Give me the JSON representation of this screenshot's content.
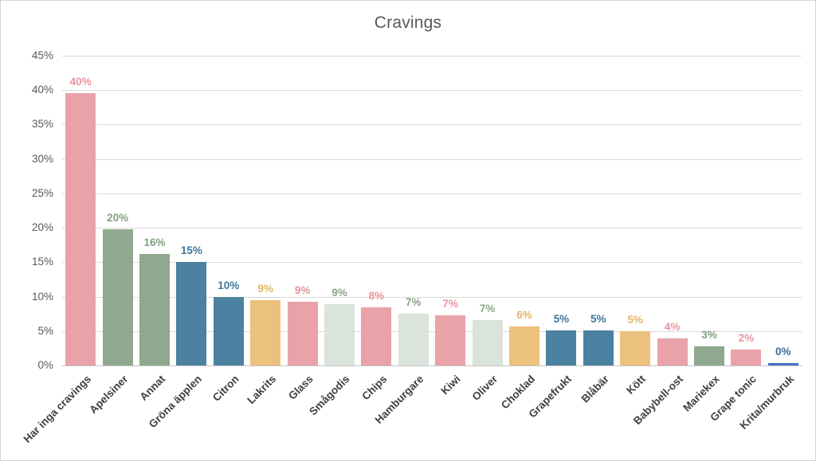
{
  "chart_data": {
    "type": "bar",
    "title": "Cravings",
    "xlabel": "",
    "ylabel": "",
    "ylim": [
      0,
      45
    ],
    "y_tick_step": 5,
    "y_tick_labels": [
      "0%",
      "5%",
      "10%",
      "15%",
      "20%",
      "25%",
      "30%",
      "35%",
      "40%",
      "45%"
    ],
    "grid": true,
    "legend": false,
    "axis_colors": {
      "title": "#595959",
      "y_tick_text": "#595959",
      "x_tick_text": "#404040",
      "gridline": "#dadada",
      "axis_line": "#c4c4c4",
      "frame_border": "#d2d2d2"
    },
    "palette": {
      "pink": {
        "bar": "#e9a3a8",
        "label": "#e7959c"
      },
      "green": {
        "bar": "#90a88d",
        "label": "#82a07f"
      },
      "pale_green": {
        "bar": "#dae3dc",
        "label": "#8aa687"
      },
      "blue": {
        "bar": "#4c81a1",
        "label": "#3f769a"
      },
      "gold": {
        "bar": "#ecc17e",
        "label": "#e5b567"
      },
      "bright_blue": {
        "bar": "#4472c4",
        "label": "#3e6e99"
      }
    },
    "categories": [
      "Har inga cravings",
      "Apelsiner",
      "Annat",
      "Gröna äpplen",
      "Citron",
      "Lakrits",
      "Glass",
      "Smågodis",
      "Chips",
      "Hamburgare",
      "Kiwi",
      "Oliver",
      "Choklad",
      "Grapefrukt",
      "Blåbär",
      "Kött",
      "Babybell-ost",
      "Mariekex",
      "Grape tonic",
      "Krita/murbruk"
    ],
    "bars": [
      {
        "category": "Har inga cravings",
        "value": 39.6,
        "value_label": "40%",
        "color": "pink"
      },
      {
        "category": "Apelsiner",
        "value": 19.8,
        "value_label": "20%",
        "color": "green"
      },
      {
        "category": "Annat",
        "value": 16.2,
        "value_label": "16%",
        "color": "green"
      },
      {
        "category": "Gröna äpplen",
        "value": 15.0,
        "value_label": "15%",
        "color": "blue"
      },
      {
        "category": "Citron",
        "value": 9.9,
        "value_label": "10%",
        "color": "blue"
      },
      {
        "category": "Lakrits",
        "value": 9.5,
        "value_label": "9%",
        "color": "gold"
      },
      {
        "category": "Glass",
        "value": 9.3,
        "value_label": "9%",
        "color": "pink"
      },
      {
        "category": "Smågodis",
        "value": 8.9,
        "value_label": "9%",
        "color": "pale_green"
      },
      {
        "category": "Chips",
        "value": 8.5,
        "value_label": "8%",
        "color": "pink"
      },
      {
        "category": "Hamburgare",
        "value": 7.5,
        "value_label": "7%",
        "color": "pale_green"
      },
      {
        "category": "Kiwi",
        "value": 7.3,
        "value_label": "7%",
        "color": "pink"
      },
      {
        "category": "Oliver",
        "value": 6.6,
        "value_label": "7%",
        "color": "pale_green"
      },
      {
        "category": "Choklad",
        "value": 5.7,
        "value_label": "6%",
        "color": "gold"
      },
      {
        "category": "Grapefrukt",
        "value": 5.1,
        "value_label": "5%",
        "color": "blue"
      },
      {
        "category": "Blåbär",
        "value": 5.1,
        "value_label": "5%",
        "color": "blue"
      },
      {
        "category": "Kött",
        "value": 5.0,
        "value_label": "5%",
        "color": "gold"
      },
      {
        "category": "Babybell-ost",
        "value": 3.9,
        "value_label": "4%",
        "color": "pink"
      },
      {
        "category": "Mariekex",
        "value": 2.8,
        "value_label": "3%",
        "color": "green"
      },
      {
        "category": "Grape tonic",
        "value": 2.3,
        "value_label": "2%",
        "color": "pink"
      },
      {
        "category": "Krita/murbruk",
        "value": 0.4,
        "value_label": "0%",
        "color": "bright_blue"
      }
    ]
  }
}
